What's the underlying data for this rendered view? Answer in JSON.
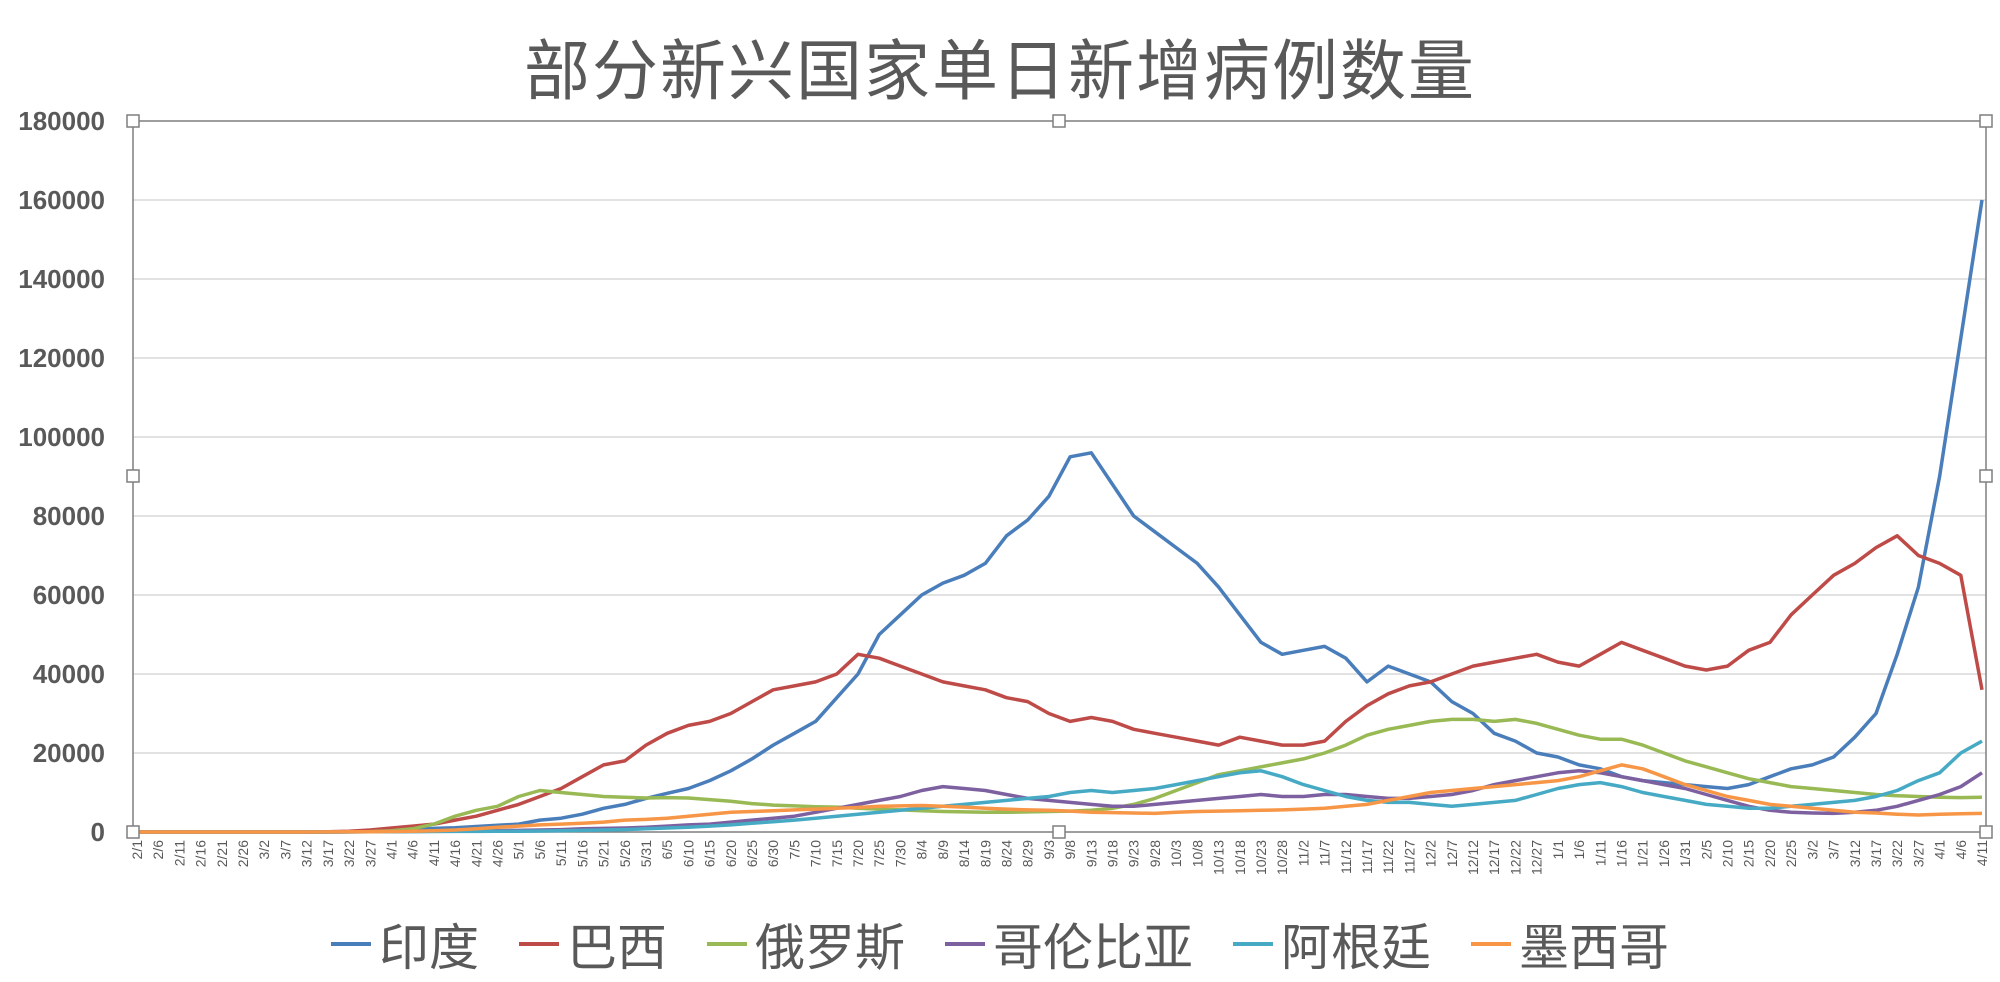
{
  "chart_data": {
    "type": "line",
    "title": "部分新兴国家单日新增病例数量",
    "xlabel": "",
    "ylabel": "",
    "ylim": [
      0,
      180000
    ],
    "yticks": [
      0,
      20000,
      40000,
      60000,
      80000,
      100000,
      120000,
      140000,
      160000,
      180000
    ],
    "x_start": "2020-02-01",
    "x_step_days": 5,
    "categories": [
      "2/1",
      "2/6",
      "2/11",
      "2/16",
      "2/21",
      "2/26",
      "3/2",
      "3/7",
      "3/12",
      "3/17",
      "3/22",
      "3/27",
      "4/1",
      "4/6",
      "4/11",
      "4/16",
      "4/21",
      "4/26",
      "5/1",
      "5/6",
      "5/11",
      "5/16",
      "5/21",
      "5/26",
      "5/31",
      "6/5",
      "6/10",
      "6/15",
      "6/20",
      "6/25",
      "6/30",
      "7/5",
      "7/10",
      "7/15",
      "7/20",
      "7/25",
      "7/30",
      "8/4",
      "8/9",
      "8/14",
      "8/19",
      "8/24",
      "8/29",
      "9/3",
      "9/8",
      "9/13",
      "9/18",
      "9/23",
      "9/28",
      "10/3",
      "10/8",
      "10/13",
      "10/18",
      "10/23",
      "10/28",
      "11/2",
      "11/7",
      "11/12",
      "11/17",
      "11/22",
      "11/27",
      "12/2",
      "12/7",
      "12/12",
      "12/17",
      "12/22",
      "12/27",
      "1/1",
      "1/6",
      "1/11",
      "1/16",
      "1/21",
      "1/26",
      "1/31",
      "2/5",
      "2/10",
      "2/15",
      "2/20",
      "2/25",
      "3/2",
      "3/7",
      "3/12",
      "3/17",
      "3/22",
      "3/27",
      "4/1",
      "4/6",
      "4/11"
    ],
    "series": [
      {
        "name": "印度",
        "color": "#4a7ebb",
        "values": [
          0,
          0,
          0,
          0,
          0,
          0,
          0,
          0,
          0,
          20,
          80,
          150,
          400,
          600,
          900,
          1100,
          1400,
          1700,
          2000,
          3000,
          3500,
          4500,
          6000,
          7000,
          8500,
          9800,
          11000,
          13000,
          15500,
          18500,
          22000,
          25000,
          28000,
          34000,
          40000,
          50000,
          55000,
          60000,
          63000,
          65000,
          68000,
          75000,
          79000,
          85000,
          95000,
          96000,
          88000,
          80000,
          76000,
          72000,
          68000,
          62000,
          55000,
          48000,
          45000,
          46000,
          47000,
          44000,
          38000,
          42000,
          40000,
          38000,
          33000,
          30000,
          25000,
          23000,
          20000,
          19000,
          17000,
          16000,
          14000,
          13000,
          12500,
          12000,
          11500,
          11000,
          12000,
          14000,
          16000,
          17000,
          19000,
          24000,
          30000,
          45000,
          62000,
          90000,
          125000,
          160000
        ]
      },
      {
        "name": "巴西",
        "color": "#be4b48",
        "values": [
          0,
          0,
          0,
          0,
          0,
          0,
          0,
          0,
          0,
          50,
          200,
          500,
          1000,
          1500,
          2000,
          3000,
          4000,
          5500,
          7000,
          9000,
          11000,
          14000,
          17000,
          18000,
          22000,
          25000,
          27000,
          28000,
          30000,
          33000,
          36000,
          37000,
          38000,
          40000,
          45000,
          44000,
          42000,
          40000,
          38000,
          37000,
          36000,
          34000,
          33000,
          30000,
          28000,
          29000,
          28000,
          26000,
          25000,
          24000,
          23000,
          22000,
          24000,
          23000,
          22000,
          22000,
          23000,
          28000,
          32000,
          35000,
          37000,
          38000,
          40000,
          42000,
          43000,
          44000,
          45000,
          43000,
          42000,
          45000,
          48000,
          46000,
          44000,
          42000,
          41000,
          42000,
          46000,
          48000,
          55000,
          60000,
          65000,
          68000,
          72000,
          75000,
          70000,
          68000,
          65000,
          36000
        ]
      },
      {
        "name": "俄罗斯",
        "color": "#98b954",
        "values": [
          0,
          0,
          0,
          0,
          0,
          0,
          0,
          0,
          0,
          10,
          30,
          100,
          300,
          800,
          2000,
          4000,
          5500,
          6500,
          9000,
          10500,
          10000,
          9500,
          9000,
          8800,
          8600,
          8700,
          8600,
          8200,
          7800,
          7200,
          6800,
          6600,
          6400,
          6300,
          6000,
          5800,
          5600,
          5400,
          5200,
          5100,
          5000,
          5000,
          5100,
          5200,
          5300,
          5500,
          6000,
          7000,
          8500,
          10500,
          12500,
          14500,
          15500,
          16500,
          17500,
          18500,
          20000,
          22000,
          24500,
          26000,
          27000,
          28000,
          28500,
          28500,
          28000,
          28500,
          27500,
          26000,
          24500,
          23500,
          23500,
          22000,
          20000,
          18000,
          16500,
          15000,
          13500,
          12500,
          11500,
          11000,
          10500,
          10000,
          9500,
          9200,
          9000,
          8800,
          8700,
          8800
        ]
      },
      {
        "name": "哥伦比亚",
        "color": "#7d60a0",
        "values": [
          0,
          0,
          0,
          0,
          0,
          0,
          0,
          0,
          0,
          5,
          30,
          50,
          100,
          150,
          200,
          250,
          300,
          350,
          400,
          500,
          600,
          800,
          900,
          1000,
          1200,
          1500,
          1800,
          2000,
          2500,
          3000,
          3500,
          4000,
          5000,
          6000,
          7000,
          8000,
          9000,
          10500,
          11500,
          11000,
          10500,
          9500,
          8500,
          8000,
          7500,
          7000,
          6500,
          6500,
          7000,
          7500,
          8000,
          8500,
          9000,
          9500,
          9000,
          9000,
          9500,
          9500,
          9000,
          8500,
          8500,
          9000,
          9500,
          10500,
          12000,
          13000,
          14000,
          15000,
          15500,
          15000,
          14000,
          13000,
          12000,
          11000,
          9500,
          8000,
          6500,
          5500,
          5000,
          4800,
          4700,
          5000,
          5500,
          6500,
          8000,
          9500,
          11500,
          15000
        ]
      },
      {
        "name": "阿根廷",
        "color": "#46aac5",
        "values": [
          0,
          0,
          0,
          0,
          0,
          0,
          0,
          0,
          0,
          5,
          20,
          50,
          80,
          100,
          120,
          150,
          150,
          180,
          200,
          250,
          300,
          400,
          500,
          600,
          800,
          1000,
          1200,
          1500,
          1800,
          2200,
          2600,
          3000,
          3500,
          4000,
          4500,
          5000,
          5500,
          6000,
          6500,
          7000,
          7500,
          8000,
          8500,
          9000,
          10000,
          10500,
          10000,
          10500,
          11000,
          12000,
          13000,
          14000,
          15000,
          15500,
          14000,
          12000,
          10500,
          9000,
          8000,
          7500,
          7500,
          7000,
          6500,
          7000,
          7500,
          8000,
          9500,
          11000,
          12000,
          12500,
          11500,
          10000,
          9000,
          8000,
          7000,
          6500,
          6000,
          6000,
          6500,
          7000,
          7500,
          8000,
          9000,
          10500,
          13000,
          15000,
          20000,
          23000
        ]
      },
      {
        "name": "墨西哥",
        "color": "#f79646",
        "values": [
          0,
          0,
          0,
          0,
          0,
          0,
          0,
          0,
          0,
          20,
          50,
          80,
          120,
          200,
          300,
          500,
          800,
          1200,
          1500,
          1800,
          2000,
          2200,
          2500,
          3000,
          3200,
          3500,
          4000,
          4500,
          5000,
          5200,
          5400,
          5600,
          5800,
          6000,
          6200,
          6500,
          6600,
          6700,
          6500,
          6300,
          6000,
          5800,
          5600,
          5500,
          5300,
          5000,
          4900,
          4800,
          4700,
          5000,
          5200,
          5300,
          5400,
          5500,
          5600,
          5800,
          6000,
          6500,
          7000,
          8000,
          9000,
          10000,
          10500,
          11000,
          11500,
          12000,
          12500,
          13000,
          14000,
          15500,
          17000,
          16000,
          14000,
          12000,
          10500,
          9000,
          8000,
          7000,
          6500,
          6000,
          5500,
          5000,
          4800,
          4500,
          4300,
          4500,
          4600,
          4700
        ]
      }
    ]
  }
}
